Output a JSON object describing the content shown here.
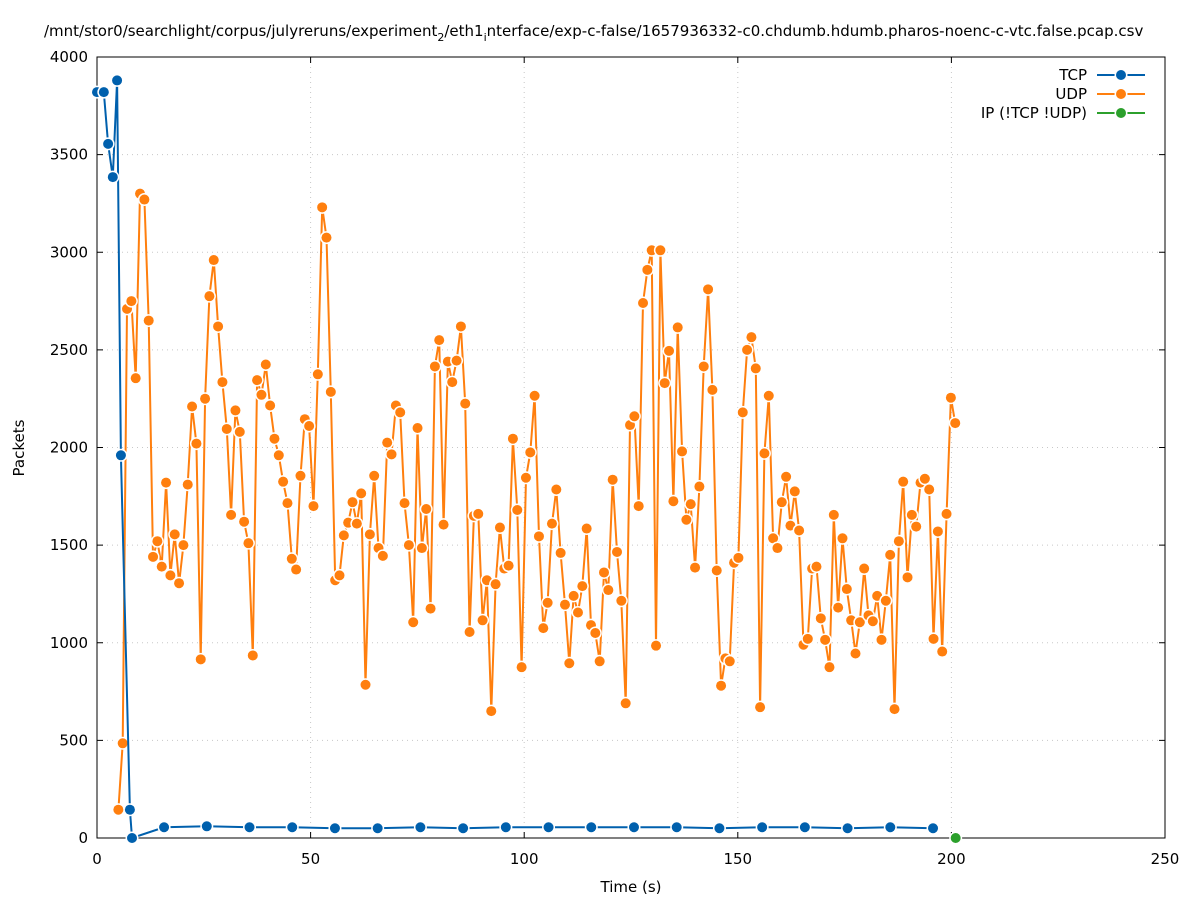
{
  "chart_data": {
    "type": "line",
    "title": "/mnt/stor0/searchlight/corpus/julyreruns/experiment_2/eth1_interface/exp-c-false/1657936332-c0.chdumb.hdumb.pharos-noenc-c-vtc.false.pcap.csv",
    "title_parts": {
      "a": "/mnt/stor0/searchlight/corpus/julyreruns/experiment",
      "sub1": "2",
      "b": "/eth1",
      "sub2": "i",
      "c": "nterface/exp-c-false/1657936332-c0.chdumb.hdumb.pharos-noenc-c-vtc.false.pcap.csv"
    },
    "xlabel": "Time (s)",
    "ylabel": "Packets",
    "xlim": [
      0,
      250
    ],
    "ylim": [
      0,
      4000
    ],
    "xticks": [
      0,
      50,
      100,
      150,
      200,
      250
    ],
    "yticks": [
      0,
      500,
      1000,
      1500,
      2000,
      2500,
      3000,
      3500,
      4000
    ],
    "grid": true,
    "legend_position": "top-right",
    "series": [
      {
        "name": "TCP",
        "color": "#0060ad",
        "x": [
          0,
          1.6,
          2.6,
          3.7,
          4.7,
          5.6,
          7.7,
          8.2,
          15.7,
          25.7,
          35.7,
          45.7,
          55.7,
          65.7,
          75.7,
          85.7,
          95.7,
          105.7,
          115.7,
          125.7,
          135.7,
          145.7,
          155.7,
          165.7,
          175.7,
          185.7,
          195.7
        ],
        "y": [
          3820,
          3820,
          3555,
          3385,
          3880,
          1960,
          145,
          0,
          55,
          60,
          55,
          55,
          50,
          50,
          55,
          50,
          55,
          55,
          55,
          55,
          55,
          50,
          55,
          55,
          50,
          55,
          50
        ]
      },
      {
        "name": "UDP",
        "color": "#ff7f0e",
        "x_start": 5,
        "x_step": 1.015,
        "y": [
          145,
          485,
          2710,
          2750,
          2355,
          3300,
          3270,
          2650,
          1440,
          1520,
          1390,
          1820,
          1345,
          1555,
          1305,
          1500,
          1810,
          2210,
          2020,
          915,
          2250,
          2775,
          2960,
          2620,
          2335,
          2095,
          1655,
          2190,
          2080,
          1620,
          1510,
          935,
          2345,
          2270,
          2425,
          2215,
          2045,
          1960,
          1825,
          1715,
          1430,
          1375,
          1855,
          2145,
          2110,
          1700,
          2375,
          3230,
          3075,
          2285,
          1320,
          1345,
          1550,
          1615,
          1720,
          1610,
          1765,
          785,
          1555,
          1855,
          1485,
          1445,
          2025,
          1965,
          2215,
          2180,
          1715,
          1500,
          1105,
          2100,
          1485,
          1685,
          1175,
          2415,
          2550,
          1605,
          2440,
          2335,
          2445,
          2620,
          2225,
          1055,
          1650,
          1660,
          1115,
          1320,
          650,
          1300,
          1590,
          1380,
          1395,
          2045,
          1680,
          875,
          1845,
          1975,
          2265,
          1545,
          1075,
          1205,
          1610,
          1785,
          1460,
          1195,
          895,
          1240,
          1155,
          1290,
          1585,
          1090,
          1050,
          905,
          1360,
          1270,
          1835,
          1465,
          1215,
          690,
          2115,
          2160,
          1700,
          2740,
          2910,
          3010,
          985,
          3010,
          2330,
          2495,
          1725,
          2615,
          1980,
          1630,
          1710,
          1385,
          1800,
          2415,
          2810,
          2295,
          1370,
          780,
          920,
          905,
          1410,
          1435,
          2180,
          2500,
          2565,
          2405,
          670,
          1970,
          2265,
          1535,
          1485,
          1720,
          1850,
          1600,
          1775,
          1575,
          990,
          1020,
          1380,
          1390,
          1125,
          1015,
          875,
          1655,
          1180,
          1535,
          1275,
          1115,
          945,
          1105,
          1380,
          1140,
          1110,
          1240,
          1015,
          1215,
          1450,
          660,
          1520,
          1825,
          1335,
          1655,
          1595,
          1820,
          1840,
          1785,
          1020,
          1570,
          955,
          1660,
          2255,
          2125
        ]
      },
      {
        "name": "IP (!TCP  !UDP)",
        "color": "#2ca02c",
        "x": [
          201
        ],
        "y": [
          0
        ]
      }
    ]
  }
}
